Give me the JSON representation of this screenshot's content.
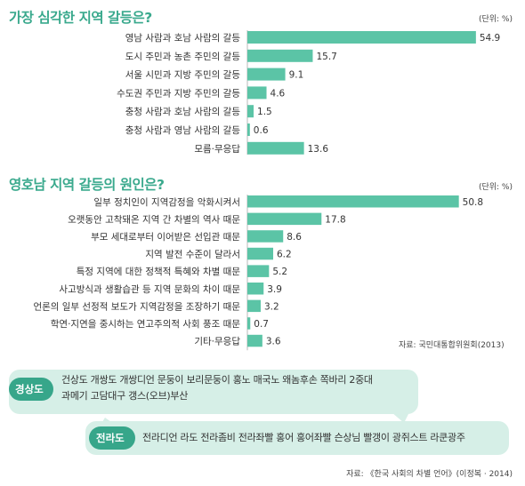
{
  "chart_data": [
    {
      "type": "bar",
      "title": "가장 심각한 지역 갈등은?",
      "unit_label": "(단위: %)",
      "categories": [
        "영남 사람과 호남 사람의 갈등",
        "도시 주민과 농촌 주민의 갈등",
        "서울 시민과 지방 주민의 갈등",
        "수도권 주민과 지방 주민의 갈등",
        "충청 사람과 호남 사람의 갈등",
        "충청 사람과 영남 사람의 갈등",
        "모름·무응답"
      ],
      "values": [
        54.9,
        15.7,
        9.1,
        4.6,
        1.5,
        0.6,
        13.6
      ],
      "value_labels": [
        "54.9",
        "15.7",
        "9.1",
        "4.6",
        "1.5",
        "0.6",
        "13.6"
      ],
      "xlim": [
        0,
        56
      ]
    },
    {
      "type": "bar",
      "title": "영호남 지역 갈등의 원인은?",
      "unit_label": "(단위: %)",
      "categories": [
        "일부 정치인이 지역감정을 악화시켜서",
        "오랫동안 고착돼온 지역 간 차별의 역사 때문",
        "부모 세대로부터 이어받은 선입관 때문",
        "지역 발전 수준이 달라서",
        "특정 지역에 대한 정책적 특혜와 차별 때문",
        "사고방식과 생활습관 등 지역 문화의 차이 때문",
        "언론의 일부 선정적 보도가 지역감정을 조장하기 때문",
        "학연·지연을 중시하는 연고주의적 사회 풍조 때문",
        "기타·무응답"
      ],
      "values": [
        50.8,
        17.8,
        8.6,
        6.2,
        5.2,
        3.9,
        3.2,
        0.7,
        3.6
      ],
      "value_labels": [
        "50.8",
        "17.8",
        "8.6",
        "6.2",
        "5.2",
        "3.9",
        "3.2",
        "0.7",
        "3.6"
      ],
      "xlim": [
        0,
        56
      ],
      "source": "자료: 국민대통합위원회(2013)"
    }
  ],
  "bubbles": [
    {
      "label": "경상도",
      "lines": [
        "건상도 개쌍도 개쌍디언 문둥이 보리문둥이 홍노 매국노 왜놈후손 쪽바리 2중대",
        "과메기 고담대구 갱스(오브)부산"
      ]
    },
    {
      "label": "전라도",
      "lines": [
        "전라디언 라도 전라좀비 전라좌빨 홍어 홍어좌빨 슨상님 빨갱이 광쥐스트 라쿤광주"
      ]
    }
  ],
  "bottom_source": "자료: 《한국 사회의 차별 언어》(이정복 · 2014)",
  "colors": {
    "bar": "#5bc4a6",
    "title": "#3aa98d",
    "bubble_bg": "#d6efe7",
    "label_bg": "#37a68a"
  }
}
